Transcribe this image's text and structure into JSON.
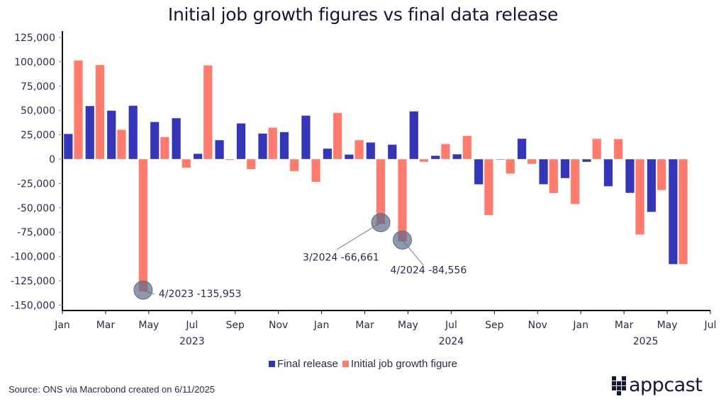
{
  "chart_data": {
    "type": "bar",
    "title": "Initial job growth figures vs final data release",
    "xlabel": "",
    "ylabel": "",
    "ylim": [
      -150000,
      125000
    ],
    "yticks": [
      125000,
      100000,
      75000,
      50000,
      25000,
      0,
      -25000,
      -50000,
      -75000,
      -100000,
      -125000,
      -150000
    ],
    "ytick_labels": [
      "125,000",
      "100,000",
      "75,000",
      "50,000",
      "25,000",
      "0",
      "-25,000",
      "-50,000",
      "-75,000",
      "-100,000",
      "-125,000",
      "-150,000"
    ],
    "xticks": [
      {
        "label": "Jan",
        "month_index": 0
      },
      {
        "label": "Mar",
        "month_index": 2
      },
      {
        "label": "May",
        "month_index": 4
      },
      {
        "label": "Jul",
        "month_index": 6
      },
      {
        "label": "Sep",
        "month_index": 8
      },
      {
        "label": "Nov",
        "month_index": 10
      },
      {
        "label": "Jan",
        "month_index": 12
      },
      {
        "label": "Mar",
        "month_index": 14
      },
      {
        "label": "May",
        "month_index": 16
      },
      {
        "label": "Jul",
        "month_index": 18
      },
      {
        "label": "Sep",
        "month_index": 20
      },
      {
        "label": "Nov",
        "month_index": 22
      },
      {
        "label": "Jan",
        "month_index": 24
      },
      {
        "label": "Mar",
        "month_index": 26
      },
      {
        "label": "May",
        "month_index": 28
      },
      {
        "label": "Jul",
        "month_index": 30
      }
    ],
    "year_labels": [
      {
        "label": "2023",
        "month_index": 6
      },
      {
        "label": "2024",
        "month_index": 18
      },
      {
        "label": "2025",
        "month_index": 27
      }
    ],
    "x_range_months": [
      0,
      30
    ],
    "categories": [
      "2023-01",
      "2023-02",
      "2023-03",
      "2023-04",
      "2023-05",
      "2023-06",
      "2023-07",
      "2023-08",
      "2023-09",
      "2023-10",
      "2023-11",
      "2023-12",
      "2024-01",
      "2024-02",
      "2024-03",
      "2024-04",
      "2024-05",
      "2024-06",
      "2024-07",
      "2024-08",
      "2024-09",
      "2024-10",
      "2024-11",
      "2024-12",
      "2025-01",
      "2025-02",
      "2025-03",
      "2025-04",
      "2025-05"
    ],
    "series": [
      {
        "name": "Final release",
        "color": "#3535b8",
        "values": [
          26000,
          54700,
          49900,
          55000,
          38300,
          42200,
          5600,
          19600,
          36800,
          26400,
          27900,
          44800,
          10900,
          4800,
          17200,
          15000,
          49200,
          3600,
          5100,
          -26000,
          -500,
          21100,
          -25900,
          -19600,
          -2900,
          -28000,
          -34800,
          -54300,
          -108000
        ]
      },
      {
        "name": "Initial job growth figure",
        "color": "#ff7b6e",
        "values": [
          101500,
          96900,
          30300,
          -135953,
          22800,
          -9000,
          96400,
          -1000,
          -10400,
          32500,
          -12400,
          -23500,
          47700,
          19600,
          -66661,
          -84556,
          -2900,
          15700,
          24000,
          -57600,
          -15000,
          -5000,
          -35000,
          -46300,
          21000,
          20800,
          -77600,
          -31900,
          -108000
        ]
      }
    ],
    "annotations": [
      {
        "text": "4/2023 -135,953",
        "category": "2023-04",
        "series": "Initial job growth figure",
        "value": -135953,
        "side": "right"
      },
      {
        "text": "3/2024 -66,661",
        "category": "2024-03",
        "series": "Initial job growth figure",
        "value": -66661,
        "side": "left"
      },
      {
        "text": "4/2024 -84,556",
        "category": "2024-04",
        "series": "Initial job growth figure",
        "value": -84556,
        "side": "right"
      }
    ],
    "grid": false,
    "legend_position": "bottom-center"
  },
  "legend": [
    {
      "label": "Final release",
      "color": "#3535b8"
    },
    {
      "label": "Initial job growth figure",
      "color": "#ff7b6e"
    }
  ],
  "source": "Source: ONS via Macrobond created on 6/11/2025",
  "logo": {
    "text": "appcast"
  }
}
